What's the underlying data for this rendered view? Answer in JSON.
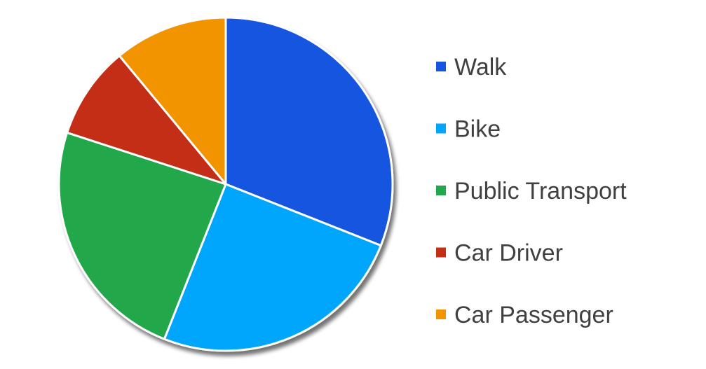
{
  "chart_data": {
    "type": "pie",
    "categories": [
      "Walk",
      "Bike",
      "Public Transport",
      "Car Driver",
      "Car Passenger"
    ],
    "values": [
      31,
      25,
      24,
      9,
      11
    ],
    "colors": [
      "#1555e0",
      "#00a6fb",
      "#22a84c",
      "#c42f16",
      "#f29302"
    ],
    "title": "",
    "legend_position": "right",
    "start_angle_deg": 0,
    "direction": "clockwise"
  }
}
